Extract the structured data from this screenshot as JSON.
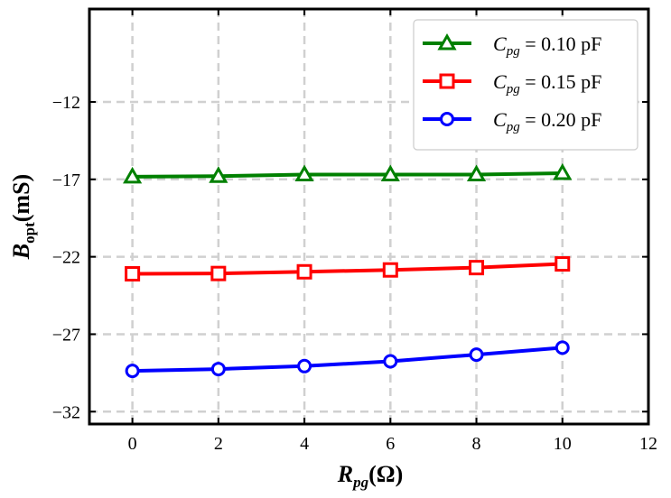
{
  "chart_data": {
    "type": "line",
    "xlabel": {
      "main": "R",
      "sub": "pg",
      "rest": "(Ω)"
    },
    "ylabel": {
      "main": "B",
      "sub": "opt",
      "rest": "(mS)"
    },
    "xlim": [
      -1,
      12
    ],
    "ylim": [
      -32.8,
      -6
    ],
    "xticks": [
      0,
      2,
      4,
      6,
      8,
      10,
      12
    ],
    "yticks": [
      -12,
      -17,
      -22,
      -27,
      -32
    ],
    "ytick_labels": [
      "−12",
      "−17",
      "−22",
      "−27",
      "−32"
    ],
    "grid": true,
    "legend_position": "top-right",
    "x": [
      0,
      2,
      4,
      6,
      8,
      10
    ],
    "series": [
      {
        "name": "C_pg = 0.10 pF",
        "label_main": "C",
        "label_sub": "pg",
        "label_rest": " = 0.10 pF",
        "color": "#008000",
        "marker": "triangle",
        "values": [
          -16.83,
          -16.79,
          -16.69,
          -16.69,
          -16.69,
          -16.6
        ]
      },
      {
        "name": "C_pg = 0.15 pF",
        "label_main": "C",
        "label_sub": "pg",
        "label_rest": " = 0.15 pF",
        "color": "#ff0000",
        "marker": "square",
        "values": [
          -23.1,
          -23.08,
          -22.97,
          -22.85,
          -22.7,
          -22.46
        ]
      },
      {
        "name": "C_pg = 0.20 pF",
        "label_main": "C",
        "label_sub": "pg",
        "label_rest": " = 0.20 pF",
        "color": "#0000ff",
        "marker": "circle",
        "values": [
          -29.37,
          -29.25,
          -29.06,
          -28.75,
          -28.32,
          -27.87
        ]
      }
    ]
  }
}
